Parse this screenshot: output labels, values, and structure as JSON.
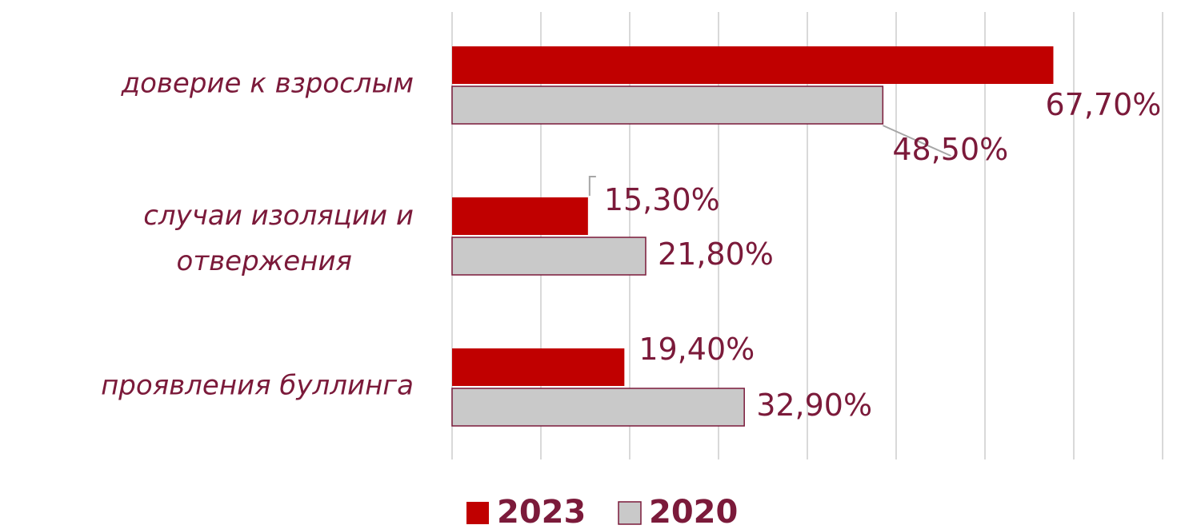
{
  "chart_data": {
    "type": "bar",
    "orientation": "horizontal",
    "categories": [
      "доверие к взрослым",
      "случаи изоляции и отвержения",
      "проявления буллинга"
    ],
    "series": [
      {
        "name": "2023",
        "color": "#c00000",
        "values": [
          67.7,
          15.3,
          19.4
        ],
        "value_labels": [
          "67,70%",
          "15,30%",
          "19,40%"
        ]
      },
      {
        "name": "2020",
        "color": "#c9c9c9",
        "values": [
          48.5,
          21.8,
          32.9
        ],
        "value_labels": [
          "48,50%",
          "21,80%",
          "32,90%"
        ]
      }
    ],
    "xlim": [
      0,
      80
    ],
    "xticks": [
      0,
      10,
      20,
      30,
      40,
      50,
      60,
      70,
      80
    ],
    "grid": true,
    "legend": "bottom"
  }
}
